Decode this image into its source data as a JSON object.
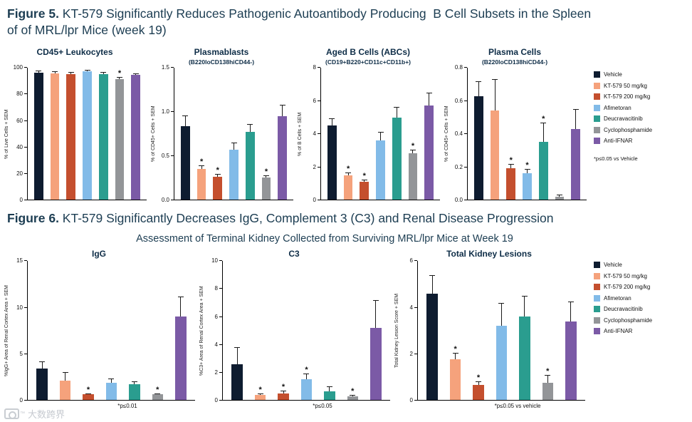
{
  "figure5": {
    "label": "Figure 5.",
    "title": " KT-579 Significantly Reduces Pathogenic Autoantibody Producing  B Cell Subsets in the Spleen\nof of MRL/lpr Mice (week 19)",
    "legend_note": "*p≤0.05 vs Vehicle"
  },
  "figure6": {
    "label": "Figure 6.",
    "title": " KT-579 Significantly Decreases IgG, Complement 3 (C3) and Renal Disease Progression",
    "subtitle": "Assessment of Terminal Kidney Collected from Surviving MRL/lpr Mice at Week 19"
  },
  "treatments": [
    {
      "name": "Vehicle",
      "color": "#0e1c30"
    },
    {
      "name": "KT-579 50 mg/kg",
      "color": "#f5a27c"
    },
    {
      "name": "KT-579 200 mg/kg",
      "color": "#c44f2e"
    },
    {
      "name": "Afimetoran",
      "color": "#82bbe8"
    },
    {
      "name": "Deucravacitinib",
      "color": "#2a9d8f"
    },
    {
      "name": "Cyclophosphamide",
      "color": "#939598"
    },
    {
      "name": "Anti-IFNAR",
      "color": "#7b5aa6"
    }
  ],
  "chart_data": [
    {
      "id": "cd45-leukocytes",
      "figure": 5,
      "type": "bar",
      "title": "CD45+ Leukocytes",
      "subtitle": "",
      "ylabel": "% of Live Cells + SEM",
      "ylim": [
        0,
        100
      ],
      "yticks": [
        "0",
        "20",
        "40",
        "60",
        "80",
        "100"
      ],
      "categories": [
        "Vehicle",
        "KT-579 50 mg/kg",
        "KT-579 200 mg/kg",
        "Afimetoran",
        "Deucravacitinib",
        "Cyclophosphamide",
        "Anti-IFNAR"
      ],
      "values": [
        96.5,
        96,
        95.5,
        97.5,
        95.5,
        91.5,
        94.5
      ],
      "sem": [
        1.5,
        1.2,
        1.2,
        1.0,
        1.2,
        1.5,
        1.5
      ],
      "significant": [
        false,
        false,
        false,
        false,
        false,
        true,
        false
      ],
      "note": ""
    },
    {
      "id": "plasmablasts",
      "figure": 5,
      "type": "bar",
      "title": "Plasmablasts",
      "subtitle": "(B220loCD138hiCD44-)",
      "ylabel": "% of CD45+ Cells + SEM",
      "ylim": [
        0,
        1.5
      ],
      "yticks": [
        "0.0",
        "0.5",
        "1.0",
        "1.5"
      ],
      "categories": [
        "Vehicle",
        "KT-579 50 mg/kg",
        "KT-579 200 mg/kg",
        "Afimetoran",
        "Deucravacitinib",
        "Cyclophosphamide",
        "Anti-IFNAR"
      ],
      "values": [
        0.84,
        0.35,
        0.26,
        0.57,
        0.77,
        0.25,
        0.95
      ],
      "sem": [
        0.12,
        0.04,
        0.03,
        0.08,
        0.09,
        0.03,
        0.13
      ],
      "significant": [
        false,
        true,
        true,
        false,
        false,
        true,
        false
      ],
      "note": ""
    },
    {
      "id": "aged-b-cells",
      "figure": 5,
      "type": "bar",
      "title": "Aged B Cells (ABCs)",
      "subtitle": "(CD19+B220+CD11c+CD11b+)",
      "ylabel": "% of B Cells + SEM",
      "ylim": [
        0,
        8
      ],
      "yticks": [
        "0",
        "2",
        "4",
        "6",
        "8"
      ],
      "categories": [
        "Vehicle",
        "KT-579 50 mg/kg",
        "KT-579 200 mg/kg",
        "Afimetoran",
        "Deucravacitinib",
        "Cyclophosphamide",
        "Anti-IFNAR"
      ],
      "values": [
        4.5,
        1.5,
        1.1,
        3.6,
        5.0,
        2.8,
        5.7
      ],
      "sem": [
        0.45,
        0.15,
        0.12,
        0.5,
        0.65,
        0.25,
        0.8
      ],
      "significant": [
        false,
        true,
        true,
        false,
        false,
        true,
        false
      ],
      "note": ""
    },
    {
      "id": "plasma-cells",
      "figure": 5,
      "type": "bar",
      "title": "Plasma Cells",
      "subtitle": "(B220loCD138hiCD44-)",
      "ylabel": "% of CD45+ Cells + SEM",
      "ylim": [
        0,
        0.8
      ],
      "yticks": [
        "0.0",
        "0.2",
        "0.4",
        "0.6",
        "0.8"
      ],
      "categories": [
        "Vehicle",
        "KT-579 50 mg/kg",
        "KT-579 200 mg/kg",
        "Afimetoran",
        "Deucravacitinib",
        "Cyclophosphamide",
        "Anti-IFNAR"
      ],
      "values": [
        0.63,
        0.54,
        0.19,
        0.16,
        0.35,
        0.02,
        0.43
      ],
      "sem": [
        0.09,
        0.19,
        0.025,
        0.025,
        0.12,
        0.01,
        0.12
      ],
      "significant": [
        false,
        false,
        true,
        true,
        true,
        false,
        false
      ],
      "note": ""
    },
    {
      "id": "igg",
      "figure": 6,
      "type": "bar",
      "title": "IgG",
      "subtitle": "",
      "ylabel": "%IgG+ Area of Renal Cortex Area + SEM",
      "ylim": [
        0,
        15
      ],
      "yticks": [
        "0",
        "5",
        "10",
        "15"
      ],
      "categories": [
        "Vehicle",
        "KT-579 50 mg/kg",
        "KT-579 200 mg/kg",
        "Afimetoran",
        "Deucravacitinib",
        "Cyclophosphamide",
        "Anti-IFNAR"
      ],
      "values": [
        3.4,
        2.1,
        0.6,
        1.9,
        1.7,
        0.6,
        9.0
      ],
      "sem": [
        0.8,
        0.9,
        0.15,
        0.45,
        0.35,
        0.15,
        2.2
      ],
      "significant": [
        false,
        false,
        true,
        false,
        false,
        true,
        false
      ],
      "note": "*p≤0.01"
    },
    {
      "id": "c3",
      "figure": 6,
      "type": "bar",
      "title": "C3",
      "subtitle": "",
      "ylabel": "%C3+ Area of Renal Cortex Area + SEM",
      "ylim": [
        0,
        10
      ],
      "yticks": [
        "0",
        "2",
        "4",
        "6",
        "8",
        "10"
      ],
      "categories": [
        "Vehicle",
        "KT-579 50 mg/kg",
        "KT-579 200 mg/kg",
        "Afimetoran",
        "Deucravacitinib",
        "Cyclophosphamide",
        "Anti-IFNAR"
      ],
      "values": [
        2.6,
        0.35,
        0.5,
        1.5,
        0.65,
        0.25,
        5.2
      ],
      "sem": [
        1.2,
        0.12,
        0.18,
        0.4,
        0.35,
        0.1,
        2.0
      ],
      "significant": [
        false,
        true,
        true,
        true,
        false,
        true,
        false
      ],
      "note": "*p≤0.05"
    },
    {
      "id": "total-kidney-lesions",
      "figure": 6,
      "type": "bar",
      "title": "Total Kidney Lesions",
      "subtitle": "",
      "ylabel": "Total Kidney Lesion Score + SEM",
      "ylim": [
        0,
        6
      ],
      "yticks": [
        "0",
        "2",
        "4",
        "6"
      ],
      "categories": [
        "Vehicle",
        "KT-579 50 mg/kg",
        "KT-579 200 mg/kg",
        "Afimetoran",
        "Deucravacitinib",
        "Cyclophosphamide",
        "Anti-IFNAR"
      ],
      "values": [
        4.6,
        1.75,
        0.65,
        3.2,
        3.6,
        0.75,
        3.4
      ],
      "sem": [
        0.8,
        0.3,
        0.15,
        1.0,
        0.9,
        0.35,
        0.85
      ],
      "significant": [
        false,
        true,
        true,
        false,
        false,
        true,
        false
      ],
      "note": "*p≤0.05 vs vehicle"
    }
  ],
  "watermark": {
    "text": "大数跨界",
    "tm": "™"
  }
}
